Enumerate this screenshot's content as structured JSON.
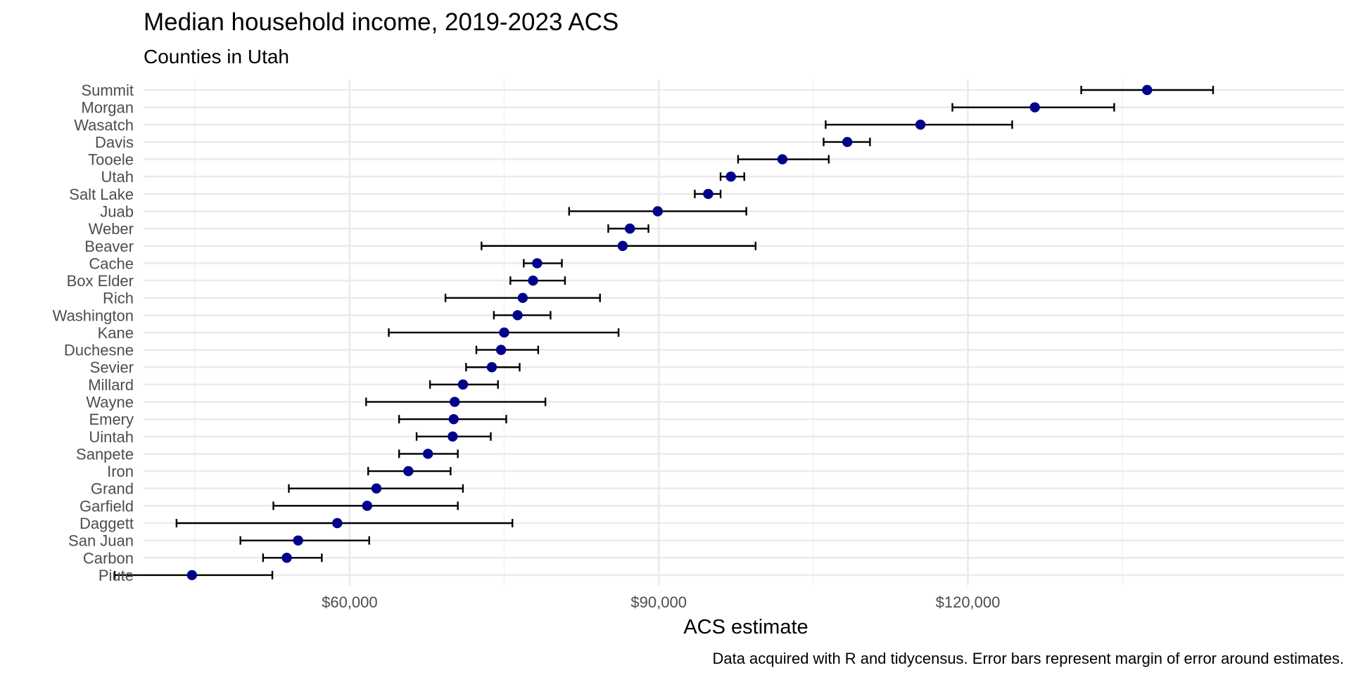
{
  "colors": {
    "point": "#00008b",
    "errorbar": "#000000",
    "grid": "#ebebeb"
  },
  "chart_data": {
    "type": "scatter",
    "title": "Median household income, 2019-2023 ACS",
    "subtitle": "Counties in Utah",
    "xlabel": "ACS estimate",
    "ylabel": "",
    "caption": "Data acquired with R and tidycensus. Error bars represent margin of error around estimates.",
    "xlim": [
      40000,
      156500
    ],
    "x_ticks": [
      60000,
      90000,
      120000
    ],
    "x_tick_labels": [
      "$60,000",
      "$90,000",
      "$120,000"
    ],
    "x_minor_ticks": [
      45000,
      75000,
      105000,
      135000
    ],
    "grid": true,
    "legend": "none",
    "error_bars": "margin of error",
    "categories": [
      "Summit",
      "Morgan",
      "Wasatch",
      "Davis",
      "Tooele",
      "Utah",
      "Salt Lake",
      "Juab",
      "Weber",
      "Beaver",
      "Cache",
      "Box Elder",
      "Rich",
      "Washington",
      "Kane",
      "Duchesne",
      "Sevier",
      "Millard",
      "Wayne",
      "Emery",
      "Uintah",
      "Sanpete",
      "Iron",
      "Grand",
      "Garfield",
      "Daggett",
      "San Juan",
      "Carbon",
      "Piute"
    ],
    "estimates": [
      137400,
      126500,
      115400,
      108300,
      102000,
      97000,
      94800,
      89900,
      87200,
      86500,
      78200,
      77800,
      76800,
      76300,
      75000,
      74700,
      73800,
      71000,
      70200,
      70100,
      70000,
      67600,
      65700,
      62600,
      61700,
      58800,
      55000,
      53900,
      44700
    ],
    "lower": [
      131000,
      118500,
      106200,
      106000,
      97700,
      96000,
      93500,
      81300,
      85100,
      72800,
      76900,
      75600,
      69300,
      74000,
      63800,
      72300,
      71300,
      67800,
      61600,
      64800,
      66500,
      64800,
      61800,
      54100,
      52600,
      43200,
      49400,
      51600,
      37200
    ],
    "upper": [
      143800,
      134200,
      124300,
      110500,
      106500,
      98300,
      96000,
      98500,
      89000,
      99400,
      80600,
      80900,
      84300,
      79500,
      86100,
      78300,
      76500,
      74400,
      79000,
      75200,
      73700,
      70500,
      69800,
      71000,
      70500,
      75800,
      61900,
      57300,
      52500
    ]
  }
}
